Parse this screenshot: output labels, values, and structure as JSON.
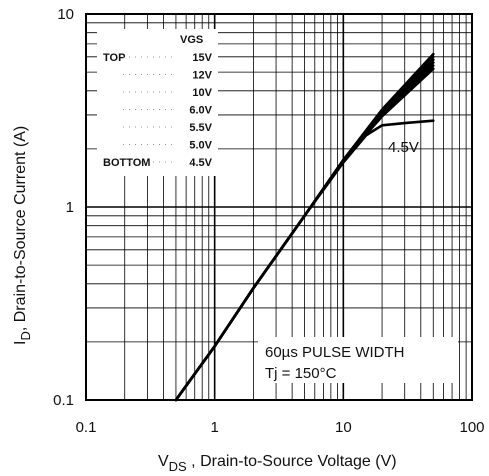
{
  "chart_data": {
    "type": "line",
    "xscale": "log",
    "yscale": "log",
    "xlim": [
      0.1,
      100
    ],
    "ylim": [
      0.1,
      10
    ],
    "grid": true,
    "x_ticks": [
      "0.1",
      "1",
      "10",
      "100"
    ],
    "y_ticks": [
      "0.1",
      "1",
      "10"
    ],
    "xlabel_main": "V",
    "xlabel_sub": "DS",
    "xlabel_rest": " , Drain-to-Source Voltage (V)",
    "ylabel_main": "I",
    "ylabel_sub": "D",
    "ylabel_rest": ", Drain-to-Source Current (A)",
    "legend": {
      "header": "VGS",
      "top_label": "TOP",
      "bottom_label": "BOTTOM",
      "entries": [
        "15V",
        "12V",
        "10V",
        "6.0V",
        "5.5V",
        "5.0V",
        "4.5V"
      ]
    },
    "curve_label": "4.5V",
    "annotation_line1": "60µs PULSE  WIDTH",
    "annotation_line2": "Tj = 150°C",
    "series": [
      {
        "name": "15V",
        "x": [
          0.5,
          1,
          2,
          5,
          10,
          20,
          50
        ],
        "y": [
          0.1,
          0.19,
          0.38,
          0.9,
          1.75,
          3.2,
          6.2
        ]
      },
      {
        "name": "12V",
        "x": [
          0.5,
          1,
          2,
          5,
          10,
          20,
          50
        ],
        "y": [
          0.1,
          0.19,
          0.38,
          0.9,
          1.75,
          3.15,
          6.0
        ]
      },
      {
        "name": "10V",
        "x": [
          0.5,
          1,
          2,
          5,
          10,
          20,
          50
        ],
        "y": [
          0.1,
          0.19,
          0.38,
          0.9,
          1.75,
          3.1,
          5.8
        ]
      },
      {
        "name": "6.0V",
        "x": [
          0.5,
          1,
          2,
          5,
          10,
          20,
          50
        ],
        "y": [
          0.1,
          0.19,
          0.38,
          0.9,
          1.75,
          3.05,
          5.6
        ]
      },
      {
        "name": "5.5V",
        "x": [
          0.5,
          1,
          2,
          5,
          10,
          20,
          50
        ],
        "y": [
          0.1,
          0.19,
          0.38,
          0.9,
          1.75,
          3.0,
          5.4
        ]
      },
      {
        "name": "5.0V",
        "x": [
          0.5,
          1,
          2,
          5,
          10,
          20,
          50
        ],
        "y": [
          0.1,
          0.19,
          0.38,
          0.9,
          1.75,
          2.95,
          5.2
        ]
      },
      {
        "name": "4.5V",
        "x": [
          0.5,
          1,
          2,
          5,
          10,
          15,
          20,
          30,
          50
        ],
        "y": [
          0.1,
          0.19,
          0.38,
          0.9,
          1.7,
          2.35,
          2.65,
          2.72,
          2.8
        ]
      }
    ]
  }
}
